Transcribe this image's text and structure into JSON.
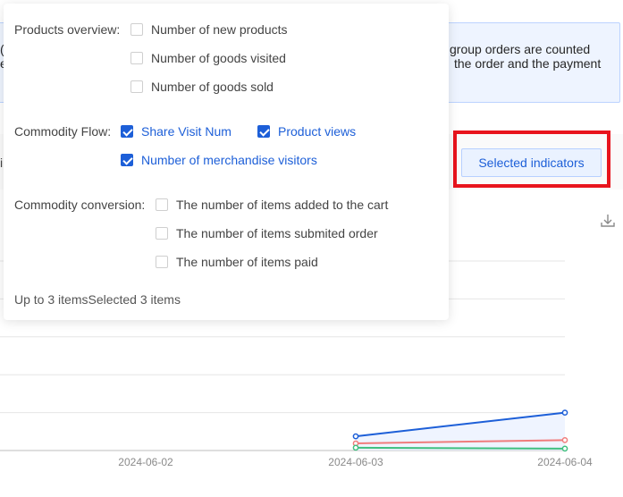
{
  "notice": {
    "line1": "group orders are counted",
    "line2": "the order and the payment",
    "edge1": "(",
    "edge2": "e"
  },
  "toolbar": {
    "edge_text": "i",
    "selected_indicators_label": "Selected indicators"
  },
  "chart_data": {
    "type": "line",
    "categories": [
      "2024-06-02",
      "2024-06-03",
      "2024-06-04"
    ],
    "series": [
      {
        "color": "#1d5fd8",
        "values": [
          null,
          3,
          8
        ]
      },
      {
        "color": "#f07c7c",
        "values": [
          null,
          1.5,
          2.2
        ]
      },
      {
        "color": "#3fbf7f",
        "values": [
          null,
          0.6,
          0.4
        ]
      }
    ],
    "ylim": [
      0,
      40
    ],
    "grid": true
  },
  "popup": {
    "groups": [
      {
        "label": "Products overview:",
        "options": [
          {
            "label": "Number of new products",
            "checked": false
          },
          {
            "label": "Number of goods visited",
            "checked": false
          },
          {
            "label": "Number of goods sold",
            "checked": false
          }
        ]
      },
      {
        "label": "Commodity Flow:",
        "options": [
          {
            "label": "Share Visit Num",
            "checked": true
          },
          {
            "label": "Product views",
            "checked": true
          },
          {
            "label": "Number of merchandise visitors",
            "checked": true
          }
        ]
      },
      {
        "label": "Commodity conversion:",
        "options": [
          {
            "label": "The number of items added to the cart",
            "checked": false
          },
          {
            "label": "The number of items submited order",
            "checked": false
          },
          {
            "label": "The number of items paid",
            "checked": false
          }
        ]
      }
    ],
    "footer": "Up to 3 itemsSelected 3 items"
  },
  "icons": {
    "download": "download-icon"
  }
}
